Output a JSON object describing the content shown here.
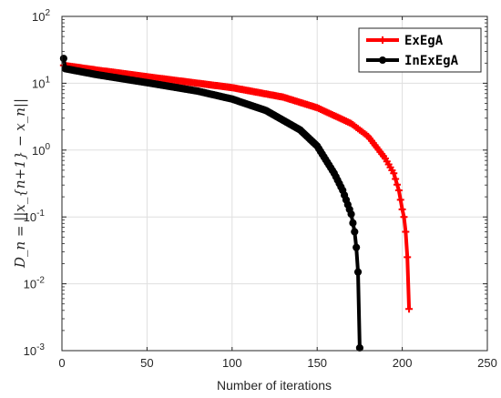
{
  "chart_data": {
    "type": "line",
    "xlabel": "Number of iterations",
    "ylabel": "D_n = ||x_{n+1} − x_n||",
    "x_range": [
      0,
      250
    ],
    "y_range": [
      0.001,
      100
    ],
    "y_scale": "log",
    "x_ticks": [
      "0",
      "50",
      "100",
      "150",
      "200",
      "250"
    ],
    "y_ticks": [
      {
        "base": "10",
        "exp": "2"
      },
      {
        "base": "10",
        "exp": "1"
      },
      {
        "base": "10",
        "exp": "0"
      },
      {
        "base": "10",
        "exp": "-1"
      },
      {
        "base": "10",
        "exp": "-2"
      },
      {
        "base": "10",
        "exp": "-3"
      }
    ],
    "grid": true,
    "legend_position": "top-right",
    "series": [
      {
        "name": "ExEgA",
        "color": "#ff0000",
        "marker": "plus",
        "points": [
          [
            1,
            18.5
          ],
          [
            20,
            15.8
          ],
          [
            50,
            12.5
          ],
          [
            100,
            8.6
          ],
          [
            130,
            6.2
          ],
          [
            150,
            4.3
          ],
          [
            170,
            2.5
          ],
          [
            180,
            1.6
          ],
          [
            190,
            0.75
          ],
          [
            195,
            0.45
          ],
          [
            198,
            0.25
          ],
          [
            200,
            0.13
          ],
          [
            201,
            0.1
          ],
          [
            202,
            0.06
          ],
          [
            203,
            0.025
          ],
          [
            204,
            0.0042
          ]
        ]
      },
      {
        "name": "InExEgA",
        "color": "#000000",
        "marker": "circle",
        "points": [
          [
            1,
            23.5
          ],
          [
            2,
            16.5
          ],
          [
            20,
            13.5
          ],
          [
            50,
            10.2
          ],
          [
            80,
            7.6
          ],
          [
            100,
            5.8
          ],
          [
            120,
            3.9
          ],
          [
            140,
            2.0
          ],
          [
            150,
            1.15
          ],
          [
            160,
            0.45
          ],
          [
            165,
            0.25
          ],
          [
            170,
            0.11
          ],
          [
            172,
            0.06
          ],
          [
            173,
            0.035
          ],
          [
            174,
            0.015
          ],
          [
            175,
            0.0011
          ]
        ]
      }
    ]
  }
}
